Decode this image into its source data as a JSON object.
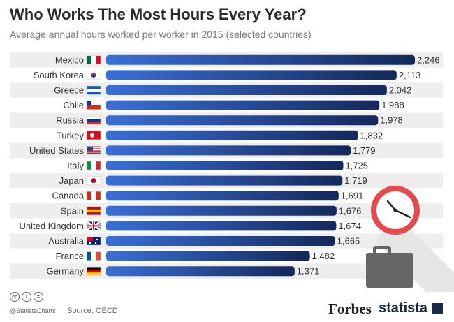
{
  "header": {
    "title": "Who Works The Most Hours Every Year?",
    "subtitle": "Average annual hours worked per worker in 2015 (selected countries)"
  },
  "chart_data": {
    "type": "bar",
    "orientation": "horizontal",
    "categories": [
      "Mexico",
      "South Korea",
      "Greece",
      "Chile",
      "Russia",
      "Turkey",
      "United States",
      "Italy",
      "Japan",
      "Canada",
      "Spain",
      "United Kingdom",
      "Australia",
      "France",
      "Germany"
    ],
    "values": [
      2246,
      2113,
      2042,
      1988,
      1978,
      1832,
      1779,
      1725,
      1719,
      1691,
      1676,
      1674,
      1665,
      1482,
      1371
    ],
    "value_labels": [
      "2,246",
      "2,113",
      "2,042",
      "1,988",
      "1,978",
      "1,832",
      "1,779",
      "1,725",
      "1,719",
      "1,691",
      "1,676",
      "1,674",
      "1,665",
      "1,482",
      "1,371"
    ],
    "bar_color_start": "#3a6fd8",
    "bar_color_end": "#14285a",
    "row_stripe_color": "#eeeeee"
  },
  "footer": {
    "cc_icons": [
      "cc-icon",
      "by-icon",
      "nd-icon"
    ],
    "handle": "@StatistaCharts",
    "source": "Source: OECD",
    "forbes_logo": "Forbes",
    "statista_logo": "statista"
  },
  "colors": {
    "clock_ring": "#e8494a",
    "briefcase": "#666666"
  }
}
